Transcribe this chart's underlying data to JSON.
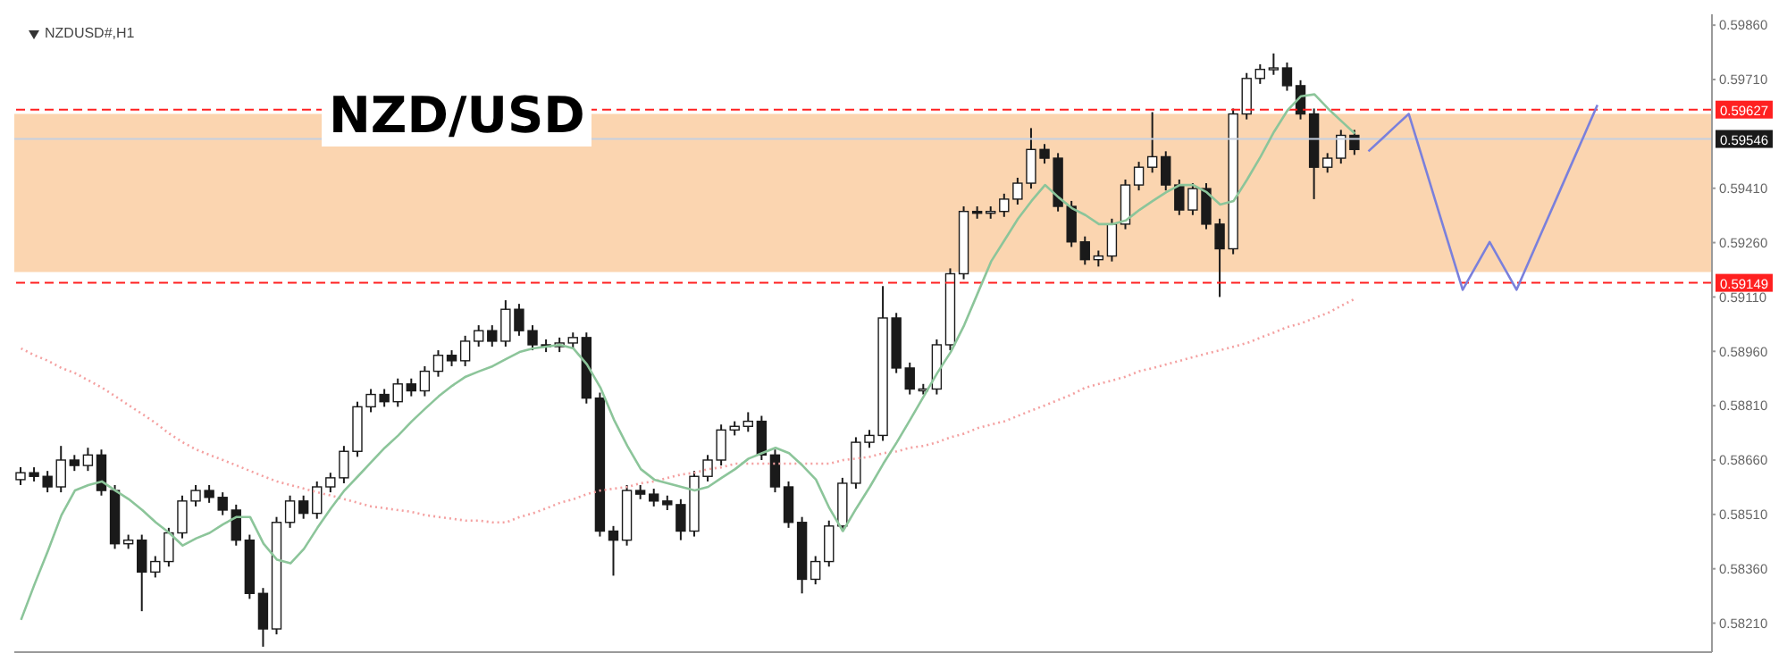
{
  "chart_data": {
    "type": "candlestick",
    "title": "NZD/USD",
    "subtitle": "NZDUSD#,H1",
    "color": "#1a1a1a",
    "tick_labels": "y",
    "categories": [
      null,
      null,
      null,
      null,
      null,
      null,
      null,
      null,
      null,
      null,
      null,
      null,
      null,
      null,
      null,
      null,
      null,
      null,
      null,
      null,
      null,
      null,
      null,
      null,
      null,
      null,
      null,
      null,
      null,
      null,
      null,
      null,
      null,
      null,
      null,
      null,
      null,
      null,
      null,
      null,
      null,
      null,
      null,
      null,
      null,
      null,
      null,
      null,
      null,
      null,
      null,
      null,
      null,
      null,
      null,
      null,
      null,
      null,
      null,
      null,
      null,
      null,
      null,
      null,
      null,
      null,
      null,
      null,
      null,
      null,
      null,
      null,
      null,
      null,
      null,
      null,
      null,
      null,
      null,
      null,
      null,
      null,
      null,
      null,
      null,
      null,
      null,
      null,
      null,
      null,
      null,
      null,
      null,
      null,
      null,
      null,
      null,
      null,
      null,
      null,
      null,
      null,
      null,
      null,
      null,
      null,
      null,
      null,
      null,
      null,
      null,
      null,
      null,
      null,
      null,
      null,
      null,
      null,
      null,
      null,
      null,
      null,
      null,
      null,
      null,
      null
    ],
    "ohlc": [
      [
        0.58606,
        0.5864,
        0.58591,
        0.58625
      ],
      [
        0.58625,
        0.5864,
        0.58601,
        0.58615
      ],
      [
        0.58615,
        0.5863,
        0.58571,
        0.58586
      ],
      [
        0.58586,
        0.58699,
        0.58571,
        0.5866
      ],
      [
        0.5866,
        0.58674,
        0.5863,
        0.58645
      ],
      [
        0.58645,
        0.58694,
        0.5863,
        0.58674
      ],
      [
        0.58674,
        0.58689,
        0.58562,
        0.58576
      ],
      [
        0.58576,
        0.58591,
        0.58415,
        0.58429
      ],
      [
        0.58429,
        0.58454,
        0.58415,
        0.58439
      ],
      [
        0.58439,
        0.58454,
        0.58243,
        0.58351
      ],
      [
        0.58351,
        0.58395,
        0.58336,
        0.5838
      ],
      [
        0.5838,
        0.58473,
        0.58366,
        0.58459
      ],
      [
        0.58459,
        0.58562,
        0.58444,
        0.58547
      ],
      [
        0.58547,
        0.58591,
        0.58532,
        0.58576
      ],
      [
        0.58576,
        0.58591,
        0.58542,
        0.58557
      ],
      [
        0.58557,
        0.58571,
        0.58508,
        0.58522
      ],
      [
        0.58522,
        0.58537,
        0.58424,
        0.58439
      ],
      [
        0.58439,
        0.58454,
        0.58277,
        0.58292
      ],
      [
        0.58292,
        0.58307,
        0.58145,
        0.58194
      ],
      [
        0.58194,
        0.58503,
        0.58179,
        0.58488
      ],
      [
        0.58488,
        0.58562,
        0.58473,
        0.58547
      ],
      [
        0.58547,
        0.58562,
        0.58498,
        0.58513
      ],
      [
        0.58513,
        0.58601,
        0.58498,
        0.58586
      ],
      [
        0.58586,
        0.58625,
        0.58571,
        0.58611
      ],
      [
        0.58611,
        0.58699,
        0.58596,
        0.58684
      ],
      [
        0.58684,
        0.58821,
        0.58669,
        0.58807
      ],
      [
        0.58807,
        0.58856,
        0.58792,
        0.58841
      ],
      [
        0.58841,
        0.58856,
        0.58807,
        0.58821
      ],
      [
        0.58821,
        0.58885,
        0.58807,
        0.5887
      ],
      [
        0.5887,
        0.58885,
        0.58836,
        0.58851
      ],
      [
        0.58851,
        0.58919,
        0.58836,
        0.58905
      ],
      [
        0.58905,
        0.58963,
        0.5889,
        0.58949
      ],
      [
        0.58949,
        0.58963,
        0.58919,
        0.58934
      ],
      [
        0.58934,
        0.59003,
        0.58919,
        0.58988
      ],
      [
        0.58988,
        0.59032,
        0.58973,
        0.59017
      ],
      [
        0.59017,
        0.59032,
        0.58973,
        0.58988
      ],
      [
        0.58988,
        0.59101,
        0.58973,
        0.59076
      ],
      [
        0.59076,
        0.59091,
        0.59003,
        0.59017
      ],
      [
        0.59017,
        0.59032,
        0.58963,
        0.58978
      ],
      [
        0.58978,
        0.58993,
        0.58958,
        0.58973
      ],
      [
        0.58973,
        0.58998,
        0.58958,
        0.58983
      ],
      [
        0.58983,
        0.59012,
        0.58968,
        0.58998
      ],
      [
        0.58998,
        0.59012,
        0.58816,
        0.58831
      ],
      [
        0.58831,
        0.58846,
        0.58449,
        0.58464
      ],
      [
        0.58464,
        0.58478,
        0.58341,
        0.58439
      ],
      [
        0.58439,
        0.58591,
        0.58424,
        0.58576
      ],
      [
        0.58576,
        0.58591,
        0.58552,
        0.58566
      ],
      [
        0.58566,
        0.58581,
        0.58532,
        0.58547
      ],
      [
        0.58547,
        0.58562,
        0.58522,
        0.58537
      ],
      [
        0.58537,
        0.58552,
        0.58439,
        0.58464
      ],
      [
        0.58464,
        0.5863,
        0.58449,
        0.58615
      ],
      [
        0.58615,
        0.58674,
        0.58601,
        0.5866
      ],
      [
        0.5866,
        0.58758,
        0.58645,
        0.58743
      ],
      [
        0.58743,
        0.58767,
        0.58728,
        0.58753
      ],
      [
        0.58753,
        0.58792,
        0.58738,
        0.58767
      ],
      [
        0.58767,
        0.58782,
        0.5866,
        0.58674
      ],
      [
        0.58674,
        0.58689,
        0.58571,
        0.58586
      ],
      [
        0.58586,
        0.58601,
        0.58473,
        0.58488
      ],
      [
        0.58488,
        0.58503,
        0.58292,
        0.58331
      ],
      [
        0.58331,
        0.58395,
        0.58317,
        0.5838
      ],
      [
        0.5838,
        0.58493,
        0.58366,
        0.58478
      ],
      [
        0.58478,
        0.58611,
        0.58464,
        0.58596
      ],
      [
        0.58596,
        0.58723,
        0.58581,
        0.58709
      ],
      [
        0.58709,
        0.58743,
        0.58694,
        0.58728
      ],
      [
        0.58728,
        0.5914,
        0.58713,
        0.59052
      ],
      [
        0.59052,
        0.59066,
        0.589,
        0.58914
      ],
      [
        0.58914,
        0.58929,
        0.58841,
        0.58856
      ],
      [
        0.58856,
        0.5887,
        0.58841,
        0.58856
      ],
      [
        0.58856,
        0.58993,
        0.58841,
        0.58978
      ],
      [
        0.58978,
        0.59189,
        0.58963,
        0.59174
      ],
      [
        0.59174,
        0.5936,
        0.59159,
        0.59346
      ],
      [
        0.59346,
        0.5936,
        0.59326,
        0.59341
      ],
      [
        0.59341,
        0.5936,
        0.59326,
        0.59346
      ],
      [
        0.59346,
        0.59395,
        0.59331,
        0.5938
      ],
      [
        0.5938,
        0.59439,
        0.59365,
        0.59424
      ],
      [
        0.59424,
        0.59576,
        0.59409,
        0.59517
      ],
      [
        0.59517,
        0.59532,
        0.59478,
        0.59493
      ],
      [
        0.59493,
        0.59507,
        0.59346,
        0.5936
      ],
      [
        0.5936,
        0.59375,
        0.59248,
        0.59262
      ],
      [
        0.59262,
        0.59277,
        0.59199,
        0.59213
      ],
      [
        0.59213,
        0.59238,
        0.59194,
        0.59223
      ],
      [
        0.59223,
        0.59326,
        0.59208,
        0.59311
      ],
      [
        0.59311,
        0.59434,
        0.59297,
        0.59419
      ],
      [
        0.59419,
        0.59483,
        0.59404,
        0.59468
      ],
      [
        0.59468,
        0.5962,
        0.59453,
        0.59497
      ],
      [
        0.59497,
        0.59512,
        0.59404,
        0.59419
      ],
      [
        0.59419,
        0.59434,
        0.59336,
        0.5935
      ],
      [
        0.5935,
        0.59424,
        0.59336,
        0.59409
      ],
      [
        0.59409,
        0.59424,
        0.59297,
        0.59311
      ],
      [
        0.59311,
        0.59326,
        0.5911,
        0.59243
      ],
      [
        0.59243,
        0.5963,
        0.59228,
        0.59615
      ],
      [
        0.59615,
        0.59728,
        0.596,
        0.59713
      ],
      [
        0.59713,
        0.59752,
        0.59698,
        0.59738
      ],
      [
        0.59738,
        0.59782,
        0.59723,
        0.59742
      ],
      [
        0.59742,
        0.59757,
        0.59679,
        0.59693
      ],
      [
        0.59693,
        0.59708,
        0.596,
        0.59615
      ],
      [
        0.59615,
        0.5963,
        0.5938,
        0.59468
      ],
      [
        0.59468,
        0.59507,
        0.59453,
        0.59493
      ],
      [
        0.59493,
        0.59571,
        0.59478,
        0.59556
      ],
      [
        0.59556,
        0.59571,
        0.59502,
        0.59517
      ],
      null,
      null,
      null,
      null,
      null,
      null,
      null,
      null,
      null,
      null,
      null,
      null,
      null,
      null,
      null,
      null,
      null,
      null,
      null,
      null,
      null,
      null,
      null,
      null,
      null,
      null
    ],
    "series": [
      {
        "type": "line",
        "color": "#f4a0a0",
        "line_style": "dotted",
        "values": [
          0.58968,
          0.58949,
          0.58934,
          0.58914,
          0.589,
          0.5888,
          0.5886,
          0.58836,
          0.58811,
          0.58787,
          0.58762,
          0.58733,
          0.58709,
          0.58689,
          0.58674,
          0.5866,
          0.58645,
          0.5863,
          0.58615,
          0.58601,
          0.58591,
          0.58581,
          0.58571,
          0.58562,
          0.58552,
          0.58542,
          0.58532,
          0.58527,
          0.58522,
          0.58517,
          0.58508,
          0.58503,
          0.58498,
          0.58493,
          0.58493,
          0.58488,
          0.58488,
          0.58503,
          0.58513,
          0.58527,
          0.58542,
          0.58552,
          0.58566,
          0.58576,
          0.58581,
          0.58586,
          0.58596,
          0.58601,
          0.58611,
          0.5862,
          0.58625,
          0.58635,
          0.5864,
          0.5865,
          0.5865,
          0.5865,
          0.5865,
          0.5865,
          0.5865,
          0.5865,
          0.5865,
          0.5866,
          0.58664,
          0.58669,
          0.58679,
          0.58684,
          0.58694,
          0.58699,
          0.58709,
          0.58723,
          0.58733,
          0.58748,
          0.58758,
          0.58767,
          0.58782,
          0.58797,
          0.58811,
          0.58826,
          0.58841,
          0.5886,
          0.5887,
          0.5888,
          0.5889,
          0.58905,
          0.58914,
          0.58924,
          0.58934,
          0.58944,
          0.58954,
          0.58963,
          0.58973,
          0.58983,
          0.58998,
          0.59012,
          0.59027,
          0.59037,
          0.59052,
          0.59066,
          0.59086,
          0.59105,
          null,
          null,
          null,
          null,
          null,
          null,
          null,
          null,
          null,
          null,
          null,
          null,
          null,
          null,
          null,
          null,
          null,
          null,
          null,
          null,
          null,
          null,
          null,
          null,
          null,
          null
        ]
      },
      {
        "type": "line",
        "color": "#8cc59a",
        "line_style": "solid",
        "values": [
          0.58219,
          0.58317,
          0.5841,
          0.58508,
          0.58576,
          0.58591,
          0.58601,
          0.58576,
          0.58552,
          0.58522,
          0.58488,
          0.58459,
          0.58424,
          0.58444,
          0.58459,
          0.58483,
          0.58503,
          0.58503,
          0.58429,
          0.58385,
          0.58375,
          0.58415,
          0.58473,
          0.58527,
          0.58576,
          0.58615,
          0.58655,
          0.58694,
          0.58728,
          0.58767,
          0.58802,
          0.58836,
          0.58865,
          0.5889,
          0.58905,
          0.58919,
          0.58939,
          0.58958,
          0.58968,
          0.58973,
          0.58978,
          0.58968,
          0.58924,
          0.5886,
          0.58772,
          0.58699,
          0.58635,
          0.58606,
          0.58596,
          0.58586,
          0.58576,
          0.58586,
          0.58611,
          0.58635,
          0.58664,
          0.58679,
          0.58694,
          0.58679,
          0.58645,
          0.58606,
          0.58527,
          0.58464,
          0.58527,
          0.58586,
          0.5865,
          0.58709,
          0.58772,
          0.58836,
          0.589,
          0.58958,
          0.59032,
          0.5912,
          0.59208,
          0.59267,
          0.59326,
          0.59375,
          0.59419,
          0.59385,
          0.59355,
          0.59336,
          0.59311,
          0.59311,
          0.59321,
          0.5935,
          0.59375,
          0.59399,
          0.59419,
          0.59419,
          0.59399,
          0.59365,
          0.59375,
          0.59434,
          0.59497,
          0.59566,
          0.59625,
          0.59664,
          0.59669,
          0.5963,
          0.59595,
          0.59561,
          null,
          null,
          null,
          null,
          null,
          null,
          null,
          null,
          null,
          null,
          null,
          null,
          null,
          null,
          null,
          null,
          null,
          null,
          null,
          null,
          null,
          null,
          null,
          null,
          null,
          null
        ]
      },
      {
        "type": "line",
        "color": "#7a80dc",
        "line_style": "solid",
        "values": [
          null,
          null,
          null,
          null,
          null,
          null,
          null,
          null,
          null,
          null,
          null,
          null,
          null,
          null,
          null,
          null,
          null,
          null,
          null,
          null,
          null,
          null,
          null,
          null,
          null,
          null,
          null,
          null,
          null,
          null,
          null,
          null,
          null,
          null,
          null,
          null,
          null,
          null,
          null,
          null,
          null,
          null,
          null,
          null,
          null,
          null,
          null,
          null,
          null,
          null,
          null,
          null,
          null,
          null,
          null,
          null,
          null,
          null,
          null,
          null,
          null,
          null,
          null,
          null,
          null,
          null,
          null,
          null,
          null,
          null,
          null,
          null,
          null,
          null,
          null,
          null,
          null,
          null,
          null,
          null,
          null,
          null,
          null,
          null,
          null,
          null,
          null,
          null,
          null,
          null,
          null,
          null,
          null,
          null,
          null,
          null,
          null,
          null,
          null,
          null,
          0.59512,
          0.59546,
          0.59581,
          0.59615,
          0.59494,
          0.59372,
          0.59251,
          0.5913,
          0.59196,
          0.59262,
          0.59196,
          0.5913,
          0.59215,
          0.593,
          0.59385,
          0.5947,
          0.59555,
          0.5964,
          null,
          null,
          null,
          null,
          null,
          null,
          null,
          null
        ]
      }
    ],
    "bands": [
      {
        "axis": "y",
        "from": 0.59179,
        "to": 0.59615,
        "color": "#fbd5b0"
      }
    ],
    "ref_lines": [
      {
        "axis": "y",
        "value": 0.59627,
        "label": "0.59627",
        "color": "#ff2020",
        "line_style": "dashed"
      },
      {
        "axis": "y",
        "value": 0.59546,
        "label": "0.59546",
        "color": "#c5d0e0",
        "line_style": "solid"
      },
      {
        "axis": "y",
        "value": 0.59149,
        "label": "0.59149",
        "color": "#ff2020",
        "line_style": "dashed"
      }
    ],
    "ylim": [
      0.5813,
      0.5989
    ],
    "yticks": [
      {
        "value": 0.5821,
        "label": "0.58210"
      },
      {
        "value": 0.5836,
        "label": "0.58360"
      },
      {
        "value": 0.5851,
        "label": "0.58510"
      },
      {
        "value": 0.5866,
        "label": "0.58660"
      },
      {
        "value": 0.5881,
        "label": "0.58810"
      },
      {
        "value": 0.5896,
        "label": "0.58960"
      },
      {
        "value": 0.5911,
        "label": "0.59110"
      },
      {
        "value": 0.5926,
        "label": "0.59260"
      },
      {
        "value": 0.5941,
        "label": "0.59410"
      },
      {
        "value": 0.5971,
        "label": "0.59710"
      },
      {
        "value": 0.5986,
        "label": "0.59860"
      }
    ],
    "grid": false,
    "legend": false
  }
}
